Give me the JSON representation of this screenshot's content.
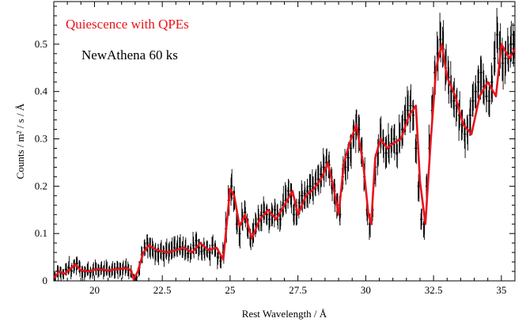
{
  "chart_data": {
    "type": "line",
    "title": "",
    "xlabel": "Rest Wavelength / Å",
    "ylabel": "Counts / m² / s / Å",
    "xlim": [
      18.5,
      35.5
    ],
    "ylim": [
      0,
      0.59
    ],
    "xticks": [
      20,
      22.5,
      25,
      27.5,
      30,
      32.5,
      35
    ],
    "xtick_labels": [
      "20",
      "22.5",
      "25",
      "27.5",
      "30",
      "32.5",
      "35"
    ],
    "yticks": [
      0,
      0.1,
      0.2,
      0.3,
      0.4,
      0.5
    ],
    "ytick_labels": [
      "0",
      "0.1",
      "0.2",
      "0.3",
      "0.4",
      "0.5"
    ],
    "grid": false,
    "legend_position": "top-left",
    "legend": [
      {
        "label": "Quiescence with QPEs",
        "color": "#e8141c"
      },
      {
        "label": "NewAthena 60 ks",
        "color": "#000000"
      }
    ],
    "colors": {
      "model": "#e8141c",
      "data": "#000000"
    },
    "series": [
      {
        "name": "Quiescence with QPEs",
        "style": "model-line",
        "x": [
          18.5,
          18.7,
          18.9,
          19.1,
          19.3,
          19.5,
          19.8,
          20.1,
          20.5,
          20.9,
          21.2,
          21.35,
          21.45,
          21.6,
          21.8,
          22.0,
          22.3,
          22.7,
          23.0,
          23.3,
          23.6,
          23.9,
          24.2,
          24.5,
          24.75,
          25.0,
          25.15,
          25.35,
          25.55,
          25.8,
          26.1,
          26.4,
          26.7,
          27.0,
          27.3,
          27.5,
          27.8,
          28.1,
          28.4,
          28.6,
          28.8,
          29.0,
          29.2,
          29.4,
          29.65,
          29.9,
          30.1,
          30.2,
          30.35,
          30.55,
          30.8,
          31.0,
          31.3,
          31.6,
          31.85,
          32.0,
          32.2,
          32.4,
          32.6,
          32.8,
          33.0,
          33.3,
          33.6,
          33.9,
          34.2,
          34.5,
          34.8,
          35.0,
          35.3,
          35.5
        ],
        "y": [
          0.005,
          0.02,
          0.015,
          0.025,
          0.035,
          0.022,
          0.02,
          0.025,
          0.022,
          0.025,
          0.027,
          0.022,
          0.003,
          0.02,
          0.06,
          0.075,
          0.065,
          0.06,
          0.065,
          0.07,
          0.06,
          0.08,
          0.065,
          0.07,
          0.045,
          0.195,
          0.18,
          0.115,
          0.14,
          0.09,
          0.13,
          0.15,
          0.13,
          0.16,
          0.19,
          0.14,
          0.18,
          0.195,
          0.22,
          0.25,
          0.2,
          0.14,
          0.25,
          0.29,
          0.33,
          0.25,
          0.14,
          0.12,
          0.26,
          0.3,
          0.28,
          0.29,
          0.3,
          0.35,
          0.37,
          0.21,
          0.12,
          0.3,
          0.45,
          0.5,
          0.43,
          0.39,
          0.33,
          0.31,
          0.39,
          0.42,
          0.39,
          0.5,
          0.47,
          0.49
        ]
      },
      {
        "name": "NewAthena 60 ks",
        "style": "data-errorbars",
        "x": [
          18.55,
          18.65,
          18.75,
          18.85,
          18.95,
          19.05,
          19.15,
          19.25,
          19.35,
          19.45,
          19.55,
          19.65,
          19.75,
          19.85,
          19.95,
          20.05,
          20.15,
          20.25,
          20.35,
          20.45,
          20.55,
          20.65,
          20.75,
          20.85,
          20.95,
          21.05,
          21.15,
          21.25,
          21.35,
          21.45,
          21.55,
          21.65,
          21.75,
          21.85,
          21.95,
          22.05,
          22.15,
          22.25,
          22.35,
          22.45,
          22.55,
          22.65,
          22.75,
          22.85,
          22.95,
          23.05,
          23.15,
          23.25,
          23.35,
          23.45,
          23.55,
          23.65,
          23.75,
          23.85,
          23.95,
          24.05,
          24.15,
          24.25,
          24.35,
          24.45,
          24.55,
          24.65,
          24.75,
          24.85,
          24.95,
          25.05,
          25.15,
          25.25,
          25.35,
          25.45,
          25.55,
          25.65,
          25.75,
          25.85,
          25.95,
          26.05,
          26.15,
          26.25,
          26.35,
          26.45,
          26.55,
          26.65,
          26.75,
          26.85,
          26.95,
          27.05,
          27.15,
          27.25,
          27.35,
          27.45,
          27.55,
          27.65,
          27.75,
          27.85,
          27.95,
          28.05,
          28.15,
          28.25,
          28.35,
          28.45,
          28.55,
          28.65,
          28.75,
          28.85,
          28.95,
          29.05,
          29.15,
          29.25,
          29.35,
          29.45,
          29.55,
          29.65,
          29.75,
          29.85,
          29.95,
          30.05,
          30.15,
          30.25,
          30.35,
          30.45,
          30.55,
          30.65,
          30.75,
          30.85,
          30.95,
          31.05,
          31.15,
          31.25,
          31.35,
          31.45,
          31.55,
          31.65,
          31.75,
          31.85,
          31.95,
          32.05,
          32.15,
          32.25,
          32.35,
          32.45,
          32.55,
          32.65,
          32.75,
          32.85,
          32.95,
          33.05,
          33.15,
          33.25,
          33.35,
          33.45,
          33.55,
          33.65,
          33.75,
          33.85,
          33.95,
          34.05,
          34.15,
          34.25,
          34.35,
          34.45,
          34.55,
          34.65,
          34.75,
          34.85,
          34.95,
          35.05,
          35.15,
          35.25,
          35.35,
          35.45
        ],
        "y": [
          0.008,
          0.021,
          0.018,
          0.014,
          0.024,
          0.028,
          0.021,
          0.031,
          0.037,
          0.03,
          0.02,
          0.019,
          0.023,
          0.018,
          0.023,
          0.026,
          0.022,
          0.027,
          0.021,
          0.023,
          0.02,
          0.024,
          0.025,
          0.028,
          0.024,
          0.026,
          0.029,
          0.023,
          0.021,
          0.004,
          0.008,
          0.028,
          0.055,
          0.07,
          0.08,
          0.072,
          0.067,
          0.063,
          0.061,
          0.064,
          0.058,
          0.062,
          0.059,
          0.064,
          0.07,
          0.068,
          0.072,
          0.066,
          0.069,
          0.058,
          0.062,
          0.075,
          0.085,
          0.07,
          0.062,
          0.065,
          0.068,
          0.06,
          0.075,
          0.068,
          0.05,
          0.042,
          0.06,
          0.11,
          0.17,
          0.2,
          0.175,
          0.12,
          0.1,
          0.13,
          0.145,
          0.11,
          0.09,
          0.1,
          0.12,
          0.13,
          0.138,
          0.145,
          0.14,
          0.13,
          0.138,
          0.15,
          0.14,
          0.13,
          0.16,
          0.17,
          0.19,
          0.18,
          0.14,
          0.15,
          0.165,
          0.18,
          0.185,
          0.19,
          0.2,
          0.195,
          0.205,
          0.215,
          0.225,
          0.24,
          0.25,
          0.245,
          0.21,
          0.19,
          0.16,
          0.14,
          0.22,
          0.24,
          0.26,
          0.28,
          0.31,
          0.33,
          0.32,
          0.27,
          0.22,
          0.15,
          0.12,
          0.15,
          0.24,
          0.27,
          0.3,
          0.29,
          0.27,
          0.28,
          0.29,
          0.3,
          0.27,
          0.3,
          0.32,
          0.34,
          0.36,
          0.37,
          0.35,
          0.28,
          0.2,
          0.13,
          0.12,
          0.2,
          0.28,
          0.36,
          0.44,
          0.48,
          0.51,
          0.49,
          0.45,
          0.43,
          0.4,
          0.38,
          0.37,
          0.35,
          0.33,
          0.31,
          0.32,
          0.35,
          0.38,
          0.4,
          0.42,
          0.44,
          0.41,
          0.39,
          0.38,
          0.42,
          0.47,
          0.52,
          0.49,
          0.46,
          0.47,
          0.48,
          0.5,
          0.49
        ]
      }
    ]
  }
}
